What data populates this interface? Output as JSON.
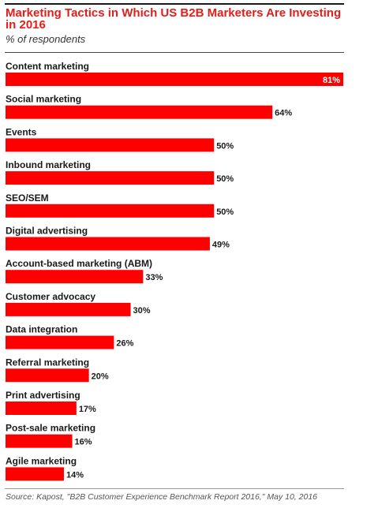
{
  "header": {
    "title": "Marketing Tactics in Which US B2B Marketers Are Investing in 2016",
    "subtitle": "% of respondents"
  },
  "footer": {
    "source": "Source: Kapost, \"B2B Customer Experience Benchmark Report 2016,\" May 10, 2016"
  },
  "colors": {
    "bar": "#ff0000",
    "title": "#e31d1a",
    "label": "#1a1a1a"
  },
  "chart_data": {
    "type": "bar",
    "orientation": "horizontal",
    "title": "Marketing Tactics in Which US B2B Marketers Are Investing in 2016",
    "subtitle": "% of respondents",
    "categories": [
      "Content marketing",
      "Social marketing",
      "Events",
      "Inbound marketing",
      "SEO/SEM",
      "Digital advertising",
      "Account-based marketing (ABM)",
      "Customer advocacy",
      "Data integration",
      "Referral marketing",
      "Print advertising",
      "Post-sale marketing",
      "Agile marketing"
    ],
    "values": [
      81,
      64,
      50,
      50,
      50,
      49,
      33,
      30,
      26,
      20,
      17,
      16,
      14
    ],
    "value_labels": [
      "81%",
      "64%",
      "50%",
      "50%",
      "50%",
      "49%",
      "33%",
      "30%",
      "26%",
      "20%",
      "17%",
      "16%",
      "14%"
    ],
    "unit": "%",
    "xlim": [
      0,
      81
    ],
    "grid": false,
    "legend": "none"
  }
}
